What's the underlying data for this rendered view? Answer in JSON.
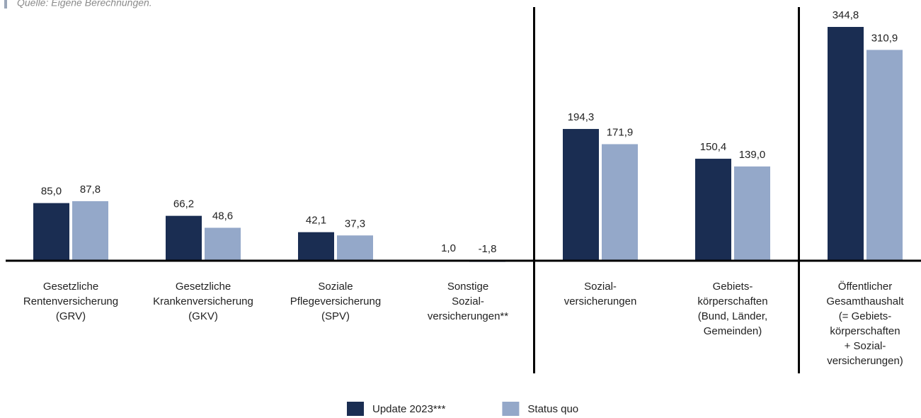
{
  "chart_data": {
    "type": "bar",
    "note": "Quelle: Eigene Berechnungen.",
    "categories": [
      [
        "Gesetzliche",
        "Rentenversicherung",
        "(GRV)"
      ],
      [
        "Gesetzliche",
        "Krankenversicherung",
        "(GKV)"
      ],
      [
        "Soziale",
        "Pflegeversicherung",
        "(SPV)"
      ],
      [
        "Sonstige",
        "Sozial-",
        "versicherungen**"
      ],
      [
        "Sozial-",
        "versicherungen"
      ],
      [
        "Gebiets-",
        "körperschaften",
        "(Bund, Länder,",
        "Gemeinden)"
      ],
      [
        "Öffentlicher",
        "Gesamthaushalt",
        "(= Gebiets-",
        "körperschaften",
        "+ Sozial-",
        "versicherungen)"
      ]
    ],
    "series": [
      {
        "name": "Update 2023***",
        "color": "#1a2d52",
        "values": [
          85.0,
          66.2,
          42.1,
          1.0,
          194.3,
          150.4,
          344.8
        ],
        "value_labels": [
          "85,0",
          "66,2",
          "42,1",
          "1,0",
          "194,3",
          "150,4",
          "344,8"
        ]
      },
      {
        "name": "Status quo",
        "color": "#94a8c9",
        "values": [
          87.8,
          48.6,
          37.3,
          -1.8,
          171.9,
          139.0,
          310.9
        ],
        "value_labels": [
          "87,8",
          "48,6",
          "37,3",
          "-1,8",
          "171,9",
          "139,0",
          "310,9"
        ]
      }
    ],
    "group_breaks": [
      3,
      5
    ],
    "legend": "bottom"
  }
}
